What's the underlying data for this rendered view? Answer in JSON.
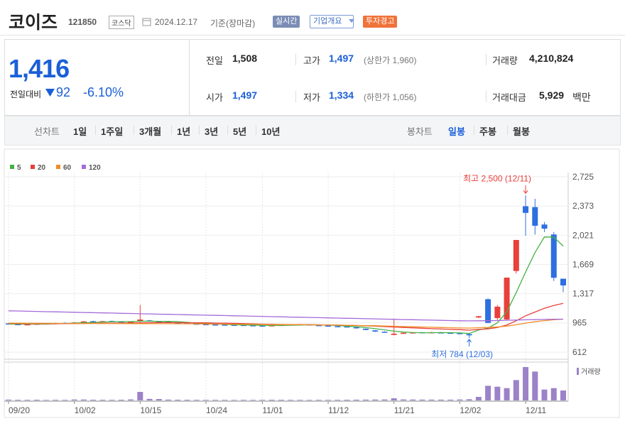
{
  "header": {
    "title": "코이즈",
    "code": "121850",
    "market": "코스닥",
    "date": "2024.12.17",
    "basis": "기준(장마감)",
    "buttons": [
      "실시간",
      "기업개요",
      "투자경고"
    ]
  },
  "quote": {
    "price": "1,416",
    "change_label": "전일대비",
    "change": "92",
    "change_rate": "-6.10%"
  },
  "stats": [
    [
      {
        "label": "전일",
        "value": "1,508"
      },
      {
        "label": "고가",
        "value": "1,497",
        "note": "(상한가 1,960)"
      },
      {
        "label": "거래량",
        "value": "4,210,824"
      }
    ],
    [
      {
        "label": "시가",
        "value": "1,497"
      },
      {
        "label": "저가",
        "value": "1,334",
        "note": "(하한가 1,056)"
      },
      {
        "label": "거래대금",
        "value": "5,929",
        "unit": "백만"
      }
    ]
  ],
  "tabs": {
    "line_label": "선차트",
    "periods": [
      "1일",
      "1주일",
      "3개월",
      "1년",
      "3년",
      "5년",
      "10년"
    ],
    "candle_label": "봉차트",
    "candle_periods": [
      "일봉",
      "주봉",
      "월봉"
    ]
  },
  "chart_data": {
    "type": "candlestick",
    "categories": [
      "09/20",
      null,
      null,
      null,
      null,
      null,
      null,
      "10/02",
      null,
      null,
      null,
      null,
      null,
      null,
      "10/15",
      null,
      null,
      null,
      null,
      null,
      null,
      "10/24",
      null,
      null,
      null,
      null,
      null,
      "11/01",
      null,
      null,
      null,
      null,
      null,
      null,
      "11/12",
      null,
      null,
      null,
      null,
      null,
      null,
      "11/21",
      null,
      null,
      null,
      null,
      null,
      null,
      "12/02",
      null,
      null,
      null,
      null,
      null,
      null,
      "12/11",
      null,
      null,
      null,
      null
    ],
    "open": [
      958,
      950,
      942,
      948,
      952,
      955,
      965,
      962,
      972,
      985,
      978,
      988,
      982,
      972,
      985,
      995,
      982,
      978,
      970,
      965,
      956,
      950,
      946,
      944,
      942,
      940,
      936,
      932,
      928,
      934,
      940,
      944,
      946,
      938,
      932,
      925,
      922,
      912,
      895,
      875,
      858,
      820,
      838,
      844,
      852,
      846,
      850,
      846,
      842,
      830,
      1030,
      1250,
      1023,
      1006,
      1590,
      2370,
      2360,
      2150,
      2030,
      1497
    ],
    "high": [
      964,
      956,
      952,
      960,
      963,
      968,
      970,
      975,
      988,
      990,
      990,
      992,
      986,
      982,
      1180,
      1000,
      988,
      982,
      974,
      968,
      960,
      954,
      950,
      948,
      946,
      944,
      940,
      936,
      938,
      944,
      950,
      952,
      950,
      942,
      936,
      930,
      926,
      916,
      898,
      878,
      862,
      1005,
      850,
      856,
      856,
      858,
      854,
      850,
      846,
      840,
      1050,
      1260,
      1180,
      1510,
      1964,
      2500,
      2460,
      2180,
      2060,
      1497
    ],
    "low": [
      944,
      940,
      938,
      944,
      948,
      950,
      955,
      958,
      968,
      972,
      972,
      975,
      970,
      968,
      975,
      980,
      970,
      965,
      960,
      952,
      945,
      940,
      938,
      936,
      934,
      930,
      926,
      924,
      924,
      930,
      936,
      940,
      936,
      926,
      920,
      915,
      910,
      895,
      875,
      855,
      845,
      815,
      835,
      840,
      842,
      840,
      840,
      835,
      828,
      784,
      1020,
      960,
      1000,
      1000,
      1560,
      2015,
      2030,
      2060,
      1470,
      1334
    ],
    "close": [
      950,
      945,
      948,
      955,
      958,
      962,
      960,
      970,
      982,
      978,
      985,
      980,
      975,
      978,
      1005,
      985,
      975,
      970,
      965,
      958,
      950,
      945,
      942,
      940,
      938,
      935,
      930,
      928,
      935,
      940,
      945,
      948,
      940,
      930,
      925,
      920,
      915,
      900,
      880,
      860,
      850,
      835,
      845,
      850,
      848,
      852,
      845,
      840,
      835,
      815,
      1045,
      965,
      1160,
      1510,
      1964,
      2290,
      2135,
      2100,
      1508,
      1416
    ],
    "volume": [
      350000,
      280000,
      250000,
      300000,
      220000,
      260000,
      240000,
      400000,
      380000,
      300000,
      280000,
      260000,
      300000,
      420000,
      3600000,
      650000,
      600000,
      350000,
      300000,
      280000,
      260000,
      240000,
      250000,
      230000,
      220000,
      240000,
      230000,
      260000,
      300000,
      280000,
      250000,
      240000,
      230000,
      250000,
      240000,
      260000,
      280000,
      320000,
      350000,
      380000,
      400000,
      900000,
      420000,
      380000,
      360000,
      350000,
      340000,
      330000,
      400000,
      500000,
      1500000,
      6200000,
      5800000,
      5200000,
      8600000,
      14100000,
      12200000,
      4600000,
      5200000,
      4210824
    ],
    "volume_label": "거래량",
    "up_color": "#e8403a",
    "down_color": "#2e6fe0",
    "volume_color": "#9c82c8",
    "series": [
      {
        "name": "5",
        "color": "#45b245",
        "values": [
          952,
          950,
          950,
          951,
          951,
          954,
          957,
          961,
          967,
          970,
          975,
          979,
          980,
          980,
          985,
          985,
          982,
          983,
          980,
          971,
          962,
          958,
          952,
          947,
          943,
          940,
          937,
          934,
          933,
          934,
          936,
          939,
          943,
          941,
          938,
          933,
          926,
          918,
          908,
          895,
          881,
          865,
          854,
          848,
          846,
          846,
          848,
          847,
          844,
          837,
          879,
          902,
          965,
          1099,
          1329,
          1578,
          1812,
          2000,
          1999,
          1890
        ]
      },
      {
        "name": "20",
        "color": "#e8403a",
        "values": [
          958,
          957,
          956,
          955,
          955,
          955,
          956,
          957,
          958,
          959,
          961,
          962,
          963,
          964,
          966,
          967,
          968,
          968,
          968,
          967,
          966,
          965,
          963,
          961,
          959,
          956,
          953,
          950,
          948,
          946,
          944,
          943,
          942,
          941,
          940,
          938,
          936,
          933,
          929,
          925,
          920,
          915,
          910,
          905,
          900,
          895,
          891,
          887,
          883,
          877,
          886,
          893,
          910,
          940,
          990,
          1050,
          1095,
          1140,
          1175,
          1200
        ]
      },
      {
        "name": "60",
        "color": "#f08c2a",
        "values": [
          962,
          961,
          960,
          960,
          959,
          959,
          958,
          958,
          958,
          958,
          957,
          957,
          957,
          956,
          956,
          956,
          955,
          955,
          954,
          954,
          953,
          952,
          951,
          950,
          949,
          948,
          947,
          946,
          945,
          944,
          943,
          942,
          941,
          940,
          939,
          938,
          936,
          934,
          932,
          930,
          927,
          924,
          921,
          918,
          915,
          912,
          909,
          906,
          904,
          902,
          906,
          910,
          916,
          926,
          942,
          962,
          978,
          992,
          1002,
          1010
        ]
      },
      {
        "name": "120",
        "color": "#a46ad9",
        "values": [
          1110,
          1108,
          1105,
          1103,
          1100,
          1098,
          1095,
          1093,
          1090,
          1088,
          1085,
          1083,
          1080,
          1078,
          1075,
          1073,
          1070,
          1068,
          1065,
          1063,
          1060,
          1058,
          1055,
          1053,
          1050,
          1048,
          1045,
          1043,
          1040,
          1038,
          1035,
          1033,
          1030,
          1028,
          1025,
          1023,
          1020,
          1018,
          1015,
          1013,
          1010,
          1008,
          1005,
          1003,
          1000,
          998,
          995,
          993,
          990,
          989,
          990,
          991,
          993,
          996,
          999,
          1002,
          1004,
          1006,
          1008,
          1010
        ]
      }
    ],
    "ylim": [
      612,
      2725
    ],
    "yticks": [
      612,
      965,
      {
        "value": 1317,
        "label": "1,317"
      },
      {
        "value": 1669,
        "label": "1,669"
      },
      {
        "value": 2021,
        "label": "2,021"
      },
      {
        "value": 2373,
        "label": "2,373"
      },
      {
        "value": 2725,
        "label": "2,725"
      }
    ],
    "grid": true,
    "max_label": "최고 2,500 (12/11)",
    "min_label": "최저 784 (12/03)"
  }
}
